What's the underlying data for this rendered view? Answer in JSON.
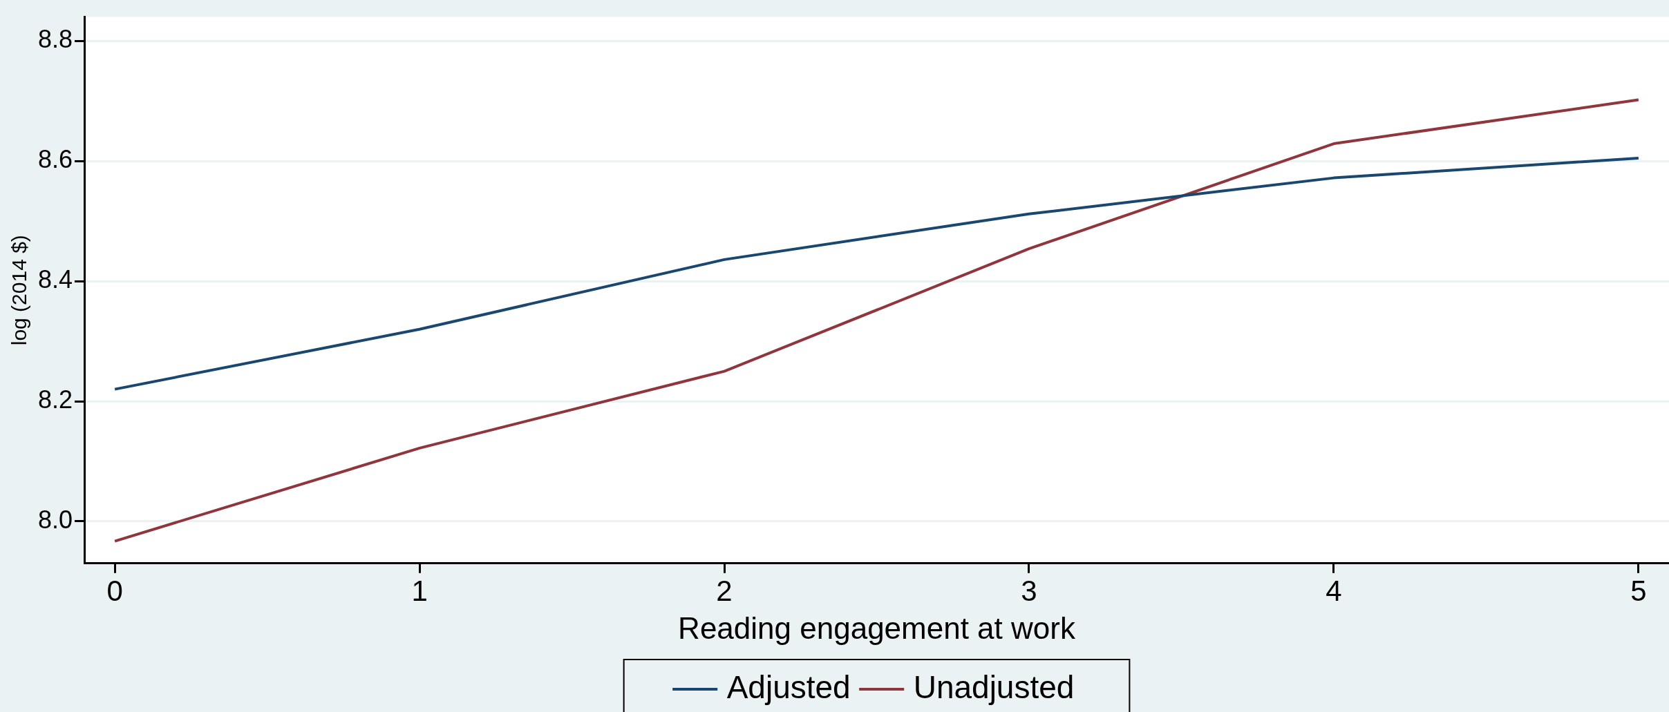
{
  "chart_data": {
    "type": "line",
    "xlabel": "Reading engagement at work",
    "ylabel": "log (2014 $)",
    "x": [
      0,
      1,
      2,
      3,
      4,
      5
    ],
    "series": [
      {
        "name": "Adjusted",
        "color": "#1a476f",
        "values": [
          8.22,
          8.32,
          8.436,
          8.512,
          8.572,
          8.605
        ]
      },
      {
        "name": "Unadjusted",
        "color": "#90353b",
        "values": [
          7.967,
          8.122,
          8.25,
          8.454,
          8.629,
          8.702
        ]
      }
    ],
    "xlim": [
      -0.1,
      5.1
    ],
    "xticks": [
      0,
      1,
      2,
      3,
      4,
      5
    ],
    "ylim": [
      7.93,
      8.84
    ],
    "yticks": [
      {
        "value": 8,
        "label": "8.0"
      },
      {
        "value": 8.2,
        "label": "8.2"
      },
      {
        "value": 8.4,
        "label": "8.4"
      },
      {
        "value": 8.6,
        "label": "8.6"
      },
      {
        "value": 8.8,
        "label": "8.8"
      }
    ],
    "grid": "y",
    "legend": "bottom",
    "marker": "none",
    "line_style": "solid"
  }
}
